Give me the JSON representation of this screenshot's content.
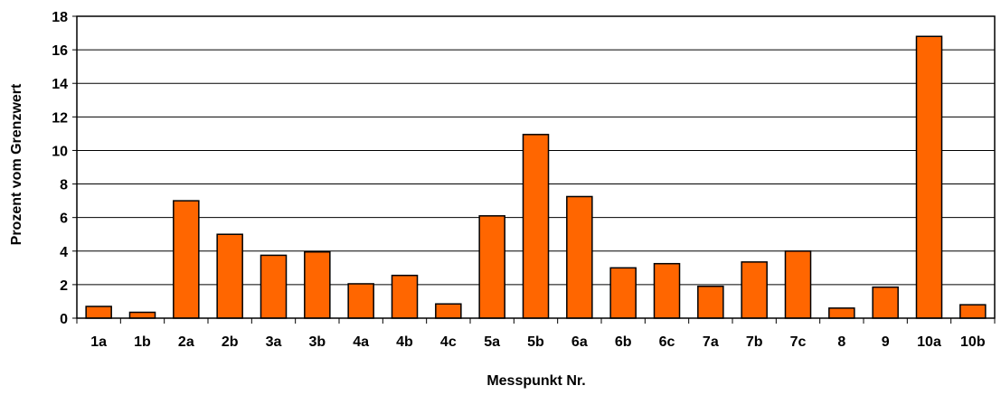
{
  "chart_data": {
    "type": "bar",
    "title": "",
    "xlabel": "Messpunkt Nr.",
    "ylabel": "Prozent vom Grenzwert",
    "categories": [
      "1a",
      "1b",
      "2a",
      "2b",
      "3a",
      "3b",
      "4a",
      "4b",
      "4c",
      "5a",
      "5b",
      "6a",
      "6b",
      "6c",
      "7a",
      "7b",
      "7c",
      "8",
      "9",
      "10a",
      "10b"
    ],
    "values": [
      0.7,
      0.35,
      7.0,
      5.0,
      3.75,
      3.95,
      2.05,
      2.55,
      0.85,
      6.1,
      10.95,
      7.25,
      3.0,
      3.25,
      1.9,
      3.35,
      4.0,
      0.6,
      1.85,
      16.8,
      0.8
    ],
    "ylim": [
      0,
      18
    ],
    "yticks": [
      0,
      2,
      4,
      6,
      8,
      10,
      12,
      14,
      16,
      18
    ],
    "grid": true,
    "legend": "none",
    "colors": {
      "bar_fill": "#FF6600",
      "bar_stroke": "#000000",
      "grid": "#000000",
      "axis": "#000000"
    }
  }
}
